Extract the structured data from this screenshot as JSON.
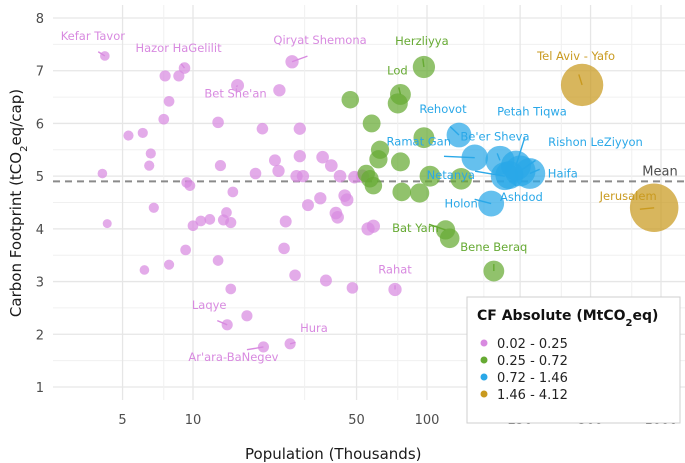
{
  "chart_data": {
    "type": "scatter",
    "title": "",
    "xlabel": "Population (Thousands)",
    "ylabel_parts": {
      "pre": "Carbon Footprint (tCO",
      "sub": "2",
      "post": "eq/cap)"
    },
    "x_scale": "log",
    "xlim": [
      3.0,
      1300
    ],
    "ylim": [
      0.6,
      8.2
    ],
    "x_ticks": [
      5,
      10,
      50,
      100,
      250,
      500,
      1000
    ],
    "x_tick_labels": [
      "5",
      "10",
      "50",
      "100",
      "250",
      "500",
      "1000"
    ],
    "x_minor_grid": [
      7.5,
      30,
      75,
      175,
      375,
      750
    ],
    "y_ticks": [
      1,
      2,
      3,
      4,
      5,
      6,
      7,
      8
    ],
    "y_tick_labels": [
      "1",
      "2",
      "3",
      "4",
      "5",
      "6",
      "7",
      "8"
    ],
    "grid": true,
    "mean_line": {
      "value": 4.9,
      "label": "Mean"
    },
    "legend": {
      "title_parts": {
        "pre": "CF Absolute (MtCO",
        "sub": "2",
        "post": "eq)"
      },
      "placement": "bottom-right",
      "entries": [
        {
          "label": "0.02 - 0.25",
          "color": "#d88ae0"
        },
        {
          "label": "0.25 - 0.72",
          "color": "#66aa33"
        },
        {
          "label": "0.72 - 1.46",
          "color": "#2aa8e8"
        },
        {
          "label": "1.46 - 4.12",
          "color": "#c99a1f"
        }
      ]
    },
    "series": [
      {
        "name": "0.02 - 0.25",
        "color": "#d88ae0",
        "points": [
          {
            "x": 4.2,
            "y": 7.28,
            "s": 0.03,
            "label": "Kefar Tavor"
          },
          {
            "x": 9.2,
            "y": 7.05,
            "s": 0.07,
            "label": "Hazor HaGelilit"
          },
          {
            "x": 26.5,
            "y": 7.17,
            "s": 0.12,
            "label": "Qiryat Shemona"
          },
          {
            "x": 15.5,
            "y": 6.72,
            "s": 0.11,
            "label": "Bet She'an"
          },
          {
            "x": 73,
            "y": 2.85,
            "s": 0.12,
            "label": "Rahat"
          },
          {
            "x": 14,
            "y": 2.18,
            "s": 0.06,
            "label": "Laqye"
          },
          {
            "x": 26,
            "y": 1.82,
            "s": 0.06,
            "label": "Hura"
          },
          {
            "x": 20,
            "y": 1.76,
            "s": 0.06,
            "label": "Ar'ara-BaNegev"
          },
          {
            "x": 7.6,
            "y": 6.9,
            "s": 0.06
          },
          {
            "x": 8.7,
            "y": 6.9,
            "s": 0.06
          },
          {
            "x": 7.9,
            "y": 6.42,
            "s": 0.05
          },
          {
            "x": 7.5,
            "y": 6.08,
            "s": 0.05
          },
          {
            "x": 5.3,
            "y": 5.77,
            "s": 0.04
          },
          {
            "x": 6.1,
            "y": 5.82,
            "s": 0.04
          },
          {
            "x": 6.6,
            "y": 5.43,
            "s": 0.04
          },
          {
            "x": 6.5,
            "y": 5.2,
            "s": 0.04
          },
          {
            "x": 4.1,
            "y": 5.05,
            "s": 0.03
          },
          {
            "x": 4.3,
            "y": 4.1,
            "s": 0.02
          },
          {
            "x": 6.8,
            "y": 4.4,
            "s": 0.04
          },
          {
            "x": 6.2,
            "y": 3.22,
            "s": 0.03
          },
          {
            "x": 7.9,
            "y": 3.32,
            "s": 0.04
          },
          {
            "x": 9.4,
            "y": 4.88,
            "s": 0.05
          },
          {
            "x": 9.7,
            "y": 4.82,
            "s": 0.05
          },
          {
            "x": 10.0,
            "y": 4.06,
            "s": 0.05
          },
          {
            "x": 10.8,
            "y": 4.15,
            "s": 0.05
          },
          {
            "x": 11.8,
            "y": 4.18,
            "s": 0.05
          },
          {
            "x": 13.5,
            "y": 4.17,
            "s": 0.06
          },
          {
            "x": 13.9,
            "y": 4.31,
            "s": 0.05
          },
          {
            "x": 14.5,
            "y": 4.12,
            "s": 0.06
          },
          {
            "x": 14.8,
            "y": 4.7,
            "s": 0.05
          },
          {
            "x": 9.3,
            "y": 3.6,
            "s": 0.05
          },
          {
            "x": 12.8,
            "y": 3.4,
            "s": 0.05
          },
          {
            "x": 14.5,
            "y": 2.86,
            "s": 0.05
          },
          {
            "x": 12.8,
            "y": 6.02,
            "s": 0.07
          },
          {
            "x": 19.8,
            "y": 5.9,
            "s": 0.07
          },
          {
            "x": 13.1,
            "y": 5.2,
            "s": 0.06
          },
          {
            "x": 18.5,
            "y": 5.05,
            "s": 0.07
          },
          {
            "x": 23.4,
            "y": 6.63,
            "s": 0.09
          },
          {
            "x": 28.6,
            "y": 5.9,
            "s": 0.09
          },
          {
            "x": 28.6,
            "y": 5.38,
            "s": 0.09
          },
          {
            "x": 22.4,
            "y": 5.3,
            "s": 0.08
          },
          {
            "x": 23.2,
            "y": 5.1,
            "s": 0.09
          },
          {
            "x": 27.7,
            "y": 5.0,
            "s": 0.09
          },
          {
            "x": 31,
            "y": 4.45,
            "s": 0.08
          },
          {
            "x": 24.9,
            "y": 4.14,
            "s": 0.08
          },
          {
            "x": 24.5,
            "y": 3.63,
            "s": 0.07
          },
          {
            "x": 27.3,
            "y": 3.12,
            "s": 0.07
          },
          {
            "x": 17.0,
            "y": 2.35,
            "s": 0.06
          },
          {
            "x": 35.8,
            "y": 5.36,
            "s": 0.1
          },
          {
            "x": 39.0,
            "y": 5.2,
            "s": 0.1
          },
          {
            "x": 29.5,
            "y": 5.0,
            "s": 0.09
          },
          {
            "x": 35.0,
            "y": 4.58,
            "s": 0.09
          },
          {
            "x": 42.5,
            "y": 5.0,
            "s": 0.1
          },
          {
            "x": 41.5,
            "y": 4.22,
            "s": 0.1
          },
          {
            "x": 44.5,
            "y": 4.63,
            "s": 0.1
          },
          {
            "x": 49.0,
            "y": 4.98,
            "s": 0.1
          },
          {
            "x": 53.0,
            "y": 5.0,
            "s": 0.12
          },
          {
            "x": 45.5,
            "y": 4.55,
            "s": 0.11
          },
          {
            "x": 48.0,
            "y": 2.88,
            "s": 0.07
          },
          {
            "x": 56.0,
            "y": 4.0,
            "s": 0.12
          },
          {
            "x": 59.0,
            "y": 4.05,
            "s": 0.12
          },
          {
            "x": 40.8,
            "y": 4.3,
            "s": 0.1
          },
          {
            "x": 37.0,
            "y": 3.02,
            "s": 0.08
          }
        ]
      },
      {
        "name": "0.25 - 0.72",
        "color": "#66aa33",
        "points": [
          {
            "x": 97,
            "y": 7.07,
            "s": 0.6,
            "label": "Herzliyya"
          },
          {
            "x": 77,
            "y": 6.55,
            "s": 0.5,
            "label": "Lod"
          },
          {
            "x": 120,
            "y": 3.98,
            "s": 0.4,
            "label": "Bat Yam"
          },
          {
            "x": 193,
            "y": 3.2,
            "s": 0.5,
            "label": "Bene Beraq"
          },
          {
            "x": 47,
            "y": 6.45,
            "s": 0.3
          },
          {
            "x": 75,
            "y": 6.38,
            "s": 0.45
          },
          {
            "x": 58,
            "y": 6.0,
            "s": 0.32
          },
          {
            "x": 97,
            "y": 5.73,
            "s": 0.5
          },
          {
            "x": 63,
            "y": 5.5,
            "s": 0.34
          },
          {
            "x": 62,
            "y": 5.32,
            "s": 0.34
          },
          {
            "x": 77,
            "y": 5.27,
            "s": 0.38
          },
          {
            "x": 55,
            "y": 5.05,
            "s": 0.3
          },
          {
            "x": 57,
            "y": 4.95,
            "s": 0.3
          },
          {
            "x": 59,
            "y": 4.82,
            "s": 0.3
          },
          {
            "x": 103,
            "y": 5.0,
            "s": 0.5
          },
          {
            "x": 78,
            "y": 4.7,
            "s": 0.36
          },
          {
            "x": 93,
            "y": 4.68,
            "s": 0.4
          },
          {
            "x": 125,
            "y": 3.82,
            "s": 0.42
          },
          {
            "x": 140,
            "y": 4.95,
            "s": 0.55
          }
        ]
      },
      {
        "name": "0.72 - 1.46",
        "color": "#2aa8e8",
        "points": [
          {
            "x": 137,
            "y": 5.78,
            "s": 0.8,
            "label": "Rehovot"
          },
          {
            "x": 160,
            "y": 5.35,
            "s": 0.95,
            "label": "Ramat Gan"
          },
          {
            "x": 205,
            "y": 5.3,
            "s": 1.2,
            "label": "Be'er Sheva"
          },
          {
            "x": 240,
            "y": 5.2,
            "s": 1.3,
            "label": "Petah Tiqwa"
          },
          {
            "x": 250,
            "y": 5.1,
            "s": 1.4,
            "label": "Rishon LeZiyyon"
          },
          {
            "x": 275,
            "y": 5.05,
            "s": 1.4,
            "label": "Haifa"
          },
          {
            "x": 215,
            "y": 5.0,
            "s": 1.1,
            "label": "Netanya"
          },
          {
            "x": 225,
            "y": 5.02,
            "s": 1.1,
            "label": "Ashdod"
          },
          {
            "x": 188,
            "y": 4.48,
            "s": 0.9,
            "label": "Holon"
          }
        ]
      },
      {
        "name": "1.46 - 4.12",
        "color": "#c99a1f",
        "points": [
          {
            "x": 460,
            "y": 6.73,
            "s": 3.0,
            "label": "Tel Aviv - Yafo"
          },
          {
            "x": 935,
            "y": 4.4,
            "s": 4.1,
            "label": "Jerusalem"
          }
        ]
      }
    ]
  }
}
